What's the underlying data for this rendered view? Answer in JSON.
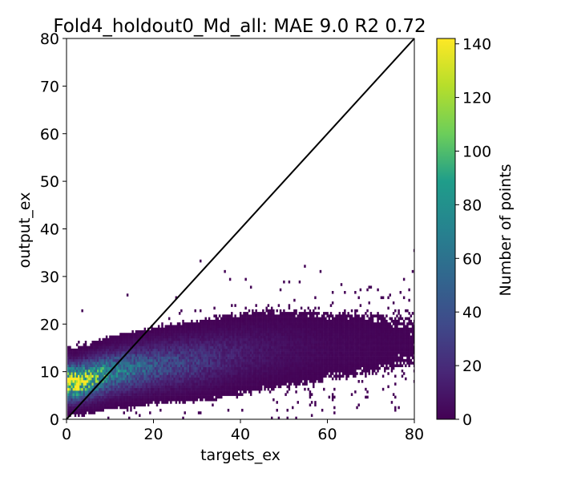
{
  "chart_data": {
    "type": "heatmap",
    "title": "Fold4_holdout0_Md_all: MAE 9.0 R2 0.72",
    "xlabel": "targets_ex",
    "ylabel": "output_ex",
    "xlim": [
      0,
      80
    ],
    "ylim": [
      0,
      80
    ],
    "xticks": [
      "0",
      "20",
      "40",
      "60",
      "80"
    ],
    "yticks": [
      "0",
      "10",
      "20",
      "30",
      "40",
      "50",
      "60",
      "70",
      "80"
    ],
    "identity_line": {
      "from": [
        0,
        0
      ],
      "to": [
        80,
        80
      ]
    },
    "grid": false,
    "colorbar": {
      "label": "Number of points",
      "range": [
        0,
        142
      ],
      "ticks": [
        "0",
        "20",
        "40",
        "60",
        "80",
        "100",
        "120",
        "140"
      ],
      "colormap": "viridis",
      "stops": [
        "#440154",
        "#482777",
        "#3f4a8a",
        "#31678e",
        "#26838f",
        "#1f9d8a",
        "#6cce5a",
        "#b6de2b",
        "#fee825"
      ]
    },
    "density_trend": [
      {
        "x": 2,
        "y": 7.5,
        "spread": 3.5,
        "peak": 140
      },
      {
        "x": 10,
        "y": 9.5,
        "spread": 4.0,
        "peak": 70
      },
      {
        "x": 20,
        "y": 11.0,
        "spread": 4.5,
        "peak": 40
      },
      {
        "x": 30,
        "y": 12.0,
        "spread": 5.0,
        "peak": 25
      },
      {
        "x": 40,
        "y": 13.5,
        "spread": 5.5,
        "peak": 12
      },
      {
        "x": 50,
        "y": 14.5,
        "spread": 6.0,
        "peak": 6
      },
      {
        "x": 60,
        "y": 15.0,
        "spread": 6.0,
        "peak": 3
      },
      {
        "x": 70,
        "y": 15.5,
        "spread": 6.0,
        "peak": 2
      },
      {
        "x": 80,
        "y": 16.0,
        "spread": 6.0,
        "peak": 1
      }
    ]
  }
}
